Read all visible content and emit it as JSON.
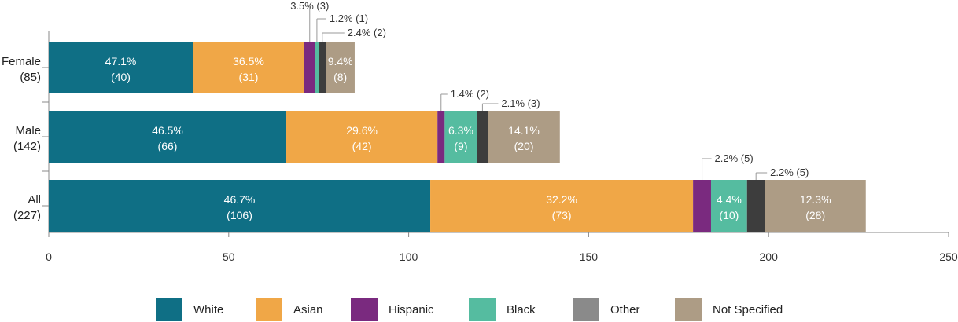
{
  "chart_data": {
    "type": "bar",
    "orientation": "horizontal",
    "stacked": true,
    "categories": [
      {
        "label_line1": "Female",
        "label_line2": "(85)"
      },
      {
        "label_line1": "Male",
        "label_line2": "(142)"
      },
      {
        "label_line1": "All",
        "label_line2": "(227)"
      }
    ],
    "series": [
      {
        "name": "White",
        "color": "#0f6f85",
        "values": [
          40,
          66,
          106
        ],
        "labels": [
          [
            "47.1%",
            "(40)"
          ],
          [
            "46.5%",
            "(66)"
          ],
          [
            "46.7%",
            "(106)"
          ]
        ]
      },
      {
        "name": "Asian",
        "color": "#f0a747",
        "values": [
          31,
          42,
          73
        ],
        "labels": [
          [
            "36.5%",
            "(31)"
          ],
          [
            "29.6%",
            "(42)"
          ],
          [
            "32.2%",
            "(73)"
          ]
        ]
      },
      {
        "name": "Hispanic",
        "color": "#7a2a7f",
        "values": [
          3,
          2,
          5
        ],
        "labels": [
          [
            "3.5% (3)"
          ],
          [
            "1.4% (2)"
          ],
          [
            "2.2% (5)"
          ]
        ]
      },
      {
        "name": "Black",
        "color": "#55bca0",
        "values": [
          1,
          9,
          10
        ],
        "labels": [
          [
            "1.2% (1)"
          ],
          [
            "6.3%",
            "(9)"
          ],
          [
            "4.4%",
            "(10)"
          ]
        ]
      },
      {
        "name": "Other",
        "color": "#3d3d3d",
        "values": [
          2,
          3,
          5
        ],
        "labels": [
          [
            "2.4% (2)"
          ],
          [
            "2.1% (3)"
          ],
          [
            "2.2% (5)"
          ]
        ]
      },
      {
        "name": "Not Specified",
        "color": "#ad9c85",
        "values": [
          8,
          20,
          28
        ],
        "labels": [
          [
            "9.4%",
            "(8)"
          ],
          [
            "14.1%",
            "(20)"
          ],
          [
            "12.3%",
            "(28)"
          ]
        ]
      }
    ],
    "xlim": [
      0,
      250
    ],
    "xticks": [
      0,
      50,
      100,
      150,
      200,
      250
    ],
    "grid": false,
    "legend_position": "bottom",
    "legend_other_color": "#8a8a8a"
  }
}
